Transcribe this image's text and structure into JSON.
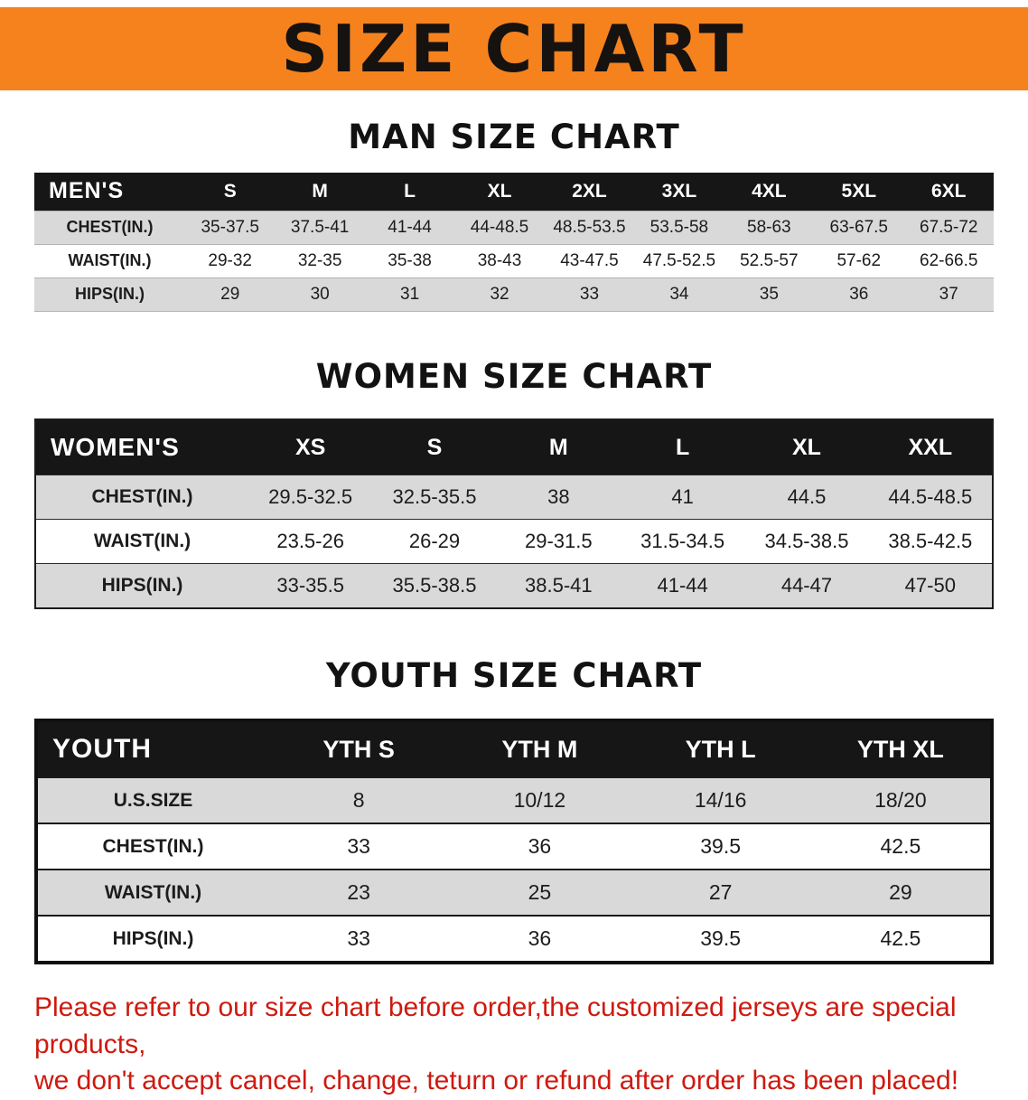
{
  "banner": {
    "title": "SIZE CHART"
  },
  "colors": {
    "accent_orange": "#f6821e",
    "header_black": "#161616",
    "row_gray": "#d9d9d9",
    "disclaimer_red": "#ce1a10"
  },
  "sections": [
    {
      "heading": "MAN SIZE CHART",
      "table": {
        "header": [
          "MEN'S",
          "S",
          "M",
          "L",
          "XL",
          "2XL",
          "3XL",
          "4XL",
          "5XL",
          "6XL"
        ],
        "rows": [
          [
            "CHEST(IN.)",
            "35-37.5",
            "37.5-41",
            "41-44",
            "44-48.5",
            "48.5-53.5",
            "53.5-58",
            "58-63",
            "63-67.5",
            "67.5-72"
          ],
          [
            "WAIST(IN.)",
            "29-32",
            "32-35",
            "35-38",
            "38-43",
            "43-47.5",
            "47.5-52.5",
            "52.5-57",
            "57-62",
            "62-66.5"
          ],
          [
            "HIPS(IN.)",
            "29",
            "30",
            "31",
            "32",
            "33",
            "34",
            "35",
            "36",
            "37"
          ]
        ]
      }
    },
    {
      "heading": "WOMEN SIZE CHART",
      "table": {
        "header": [
          "WOMEN'S",
          "XS",
          "S",
          "M",
          "L",
          "XL",
          "XXL"
        ],
        "rows": [
          [
            "CHEST(IN.)",
            "29.5-32.5",
            "32.5-35.5",
            "38",
            "41",
            "44.5",
            "44.5-48.5"
          ],
          [
            "WAIST(IN.)",
            "23.5-26",
            "26-29",
            "29-31.5",
            "31.5-34.5",
            "34.5-38.5",
            "38.5-42.5"
          ],
          [
            "HIPS(IN.)",
            "33-35.5",
            "35.5-38.5",
            "38.5-41",
            "41-44",
            "44-47",
            "47-50"
          ]
        ]
      }
    },
    {
      "heading": "YOUTH SIZE CHART",
      "table": {
        "header": [
          "YOUTH",
          "YTH S",
          "YTH M",
          "YTH L",
          "YTH XL"
        ],
        "rows": [
          [
            "U.S.SIZE",
            "8",
            "10/12",
            "14/16",
            "18/20"
          ],
          [
            "CHEST(IN.)",
            "33",
            "36",
            "39.5",
            "42.5"
          ],
          [
            "WAIST(IN.)",
            "23",
            "25",
            "27",
            "29"
          ],
          [
            "HIPS(IN.)",
            "33",
            "36",
            "39.5",
            "42.5"
          ]
        ]
      }
    }
  ],
  "disclaimer": {
    "line1": "Please refer to our size chart before order,the customized jerseys are special products,",
    "line2": "we don't accept cancel, change, teturn or refund after order has been placed!"
  }
}
